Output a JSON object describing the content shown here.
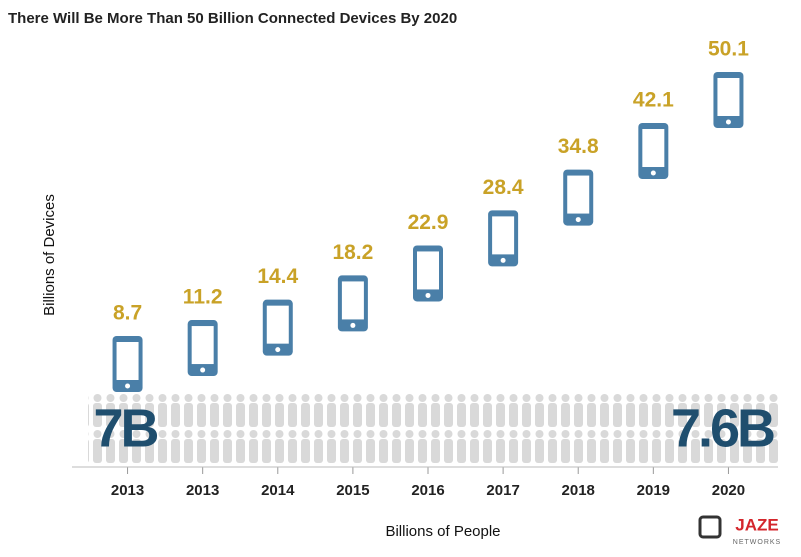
{
  "chart_data": {
    "type": "phone-bar",
    "title": "There Will Be More Than 50 Billion Connected Devices By 2020",
    "y_label": "Billions of Devices",
    "x_label": "Billions of People",
    "categories": [
      "2013",
      "2013",
      "2014",
      "2015",
      "2016",
      "2017",
      "2018",
      "2019",
      "2020"
    ],
    "values": [
      8.7,
      11.2,
      14.4,
      18.2,
      22.9,
      28.4,
      34.8,
      42.1,
      50.1
    ],
    "color": "#4a7fa8",
    "label_color": "#c9a227",
    "people_start": "7B",
    "people_end": "7.6B",
    "logo": {
      "name": "JAZE",
      "sub": "NETWORKS"
    }
  }
}
